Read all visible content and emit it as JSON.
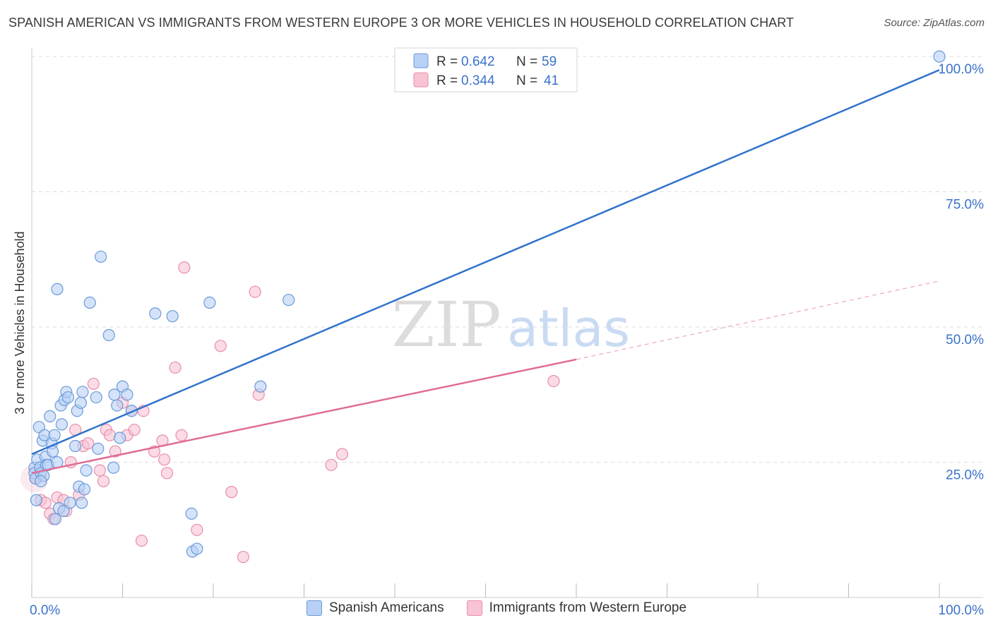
{
  "title": "SPANISH AMERICAN VS IMMIGRANTS FROM WESTERN EUROPE 3 OR MORE VEHICLES IN HOUSEHOLD CORRELATION CHART",
  "source": "Source: ZipAtlas.com",
  "watermark": {
    "zip": "ZIP",
    "atlas": "atlas"
  },
  "legend": {
    "r_label": "R =",
    "n_label": "N =",
    "series1": {
      "r": "0.642",
      "n": "59"
    },
    "series2": {
      "r": "0.344",
      "n": "41"
    }
  },
  "colors": {
    "blue_fill": "#b8d0f5",
    "blue_stroke": "#6b9ad8",
    "blue_line": "#2f72cc",
    "pink_fill": "#f8c3d3",
    "pink_stroke": "#e68fab",
    "pink_line": "#e06b94",
    "tick_blue": "#3a72c8"
  },
  "chart_data": {
    "type": "scatter",
    "title": "SPANISH AMERICAN VS IMMIGRANTS FROM WESTERN EUROPE 3 OR MORE VEHICLES IN HOUSEHOLD CORRELATION CHART",
    "xlabel": "",
    "ylabel": "3 or more Vehicles in Household",
    "xlim": [
      0,
      100
    ],
    "ylim": [
      0,
      100
    ],
    "x_tick_labels": [
      "0.0%",
      "100.0%"
    ],
    "y_ticks": [
      25,
      50,
      75,
      100
    ],
    "y_tick_labels": [
      "25.0%",
      "50.0%",
      "75.0%",
      "100.0%"
    ],
    "legend_position": "top-center",
    "series": [
      {
        "name": "Spanish Americans",
        "r": 0.642,
        "n": 59,
        "trend": {
          "x0": 0,
          "y0": 26.5,
          "x1": 100,
          "y1": 97.5
        },
        "points": [
          [
            0.3,
            24.0
          ],
          [
            0.3,
            23.0
          ],
          [
            0.4,
            22.0
          ],
          [
            0.5,
            18.0
          ],
          [
            0.6,
            25.5
          ],
          [
            0.8,
            31.5
          ],
          [
            0.9,
            24.0
          ],
          [
            1.0,
            23.0
          ],
          [
            1.2,
            29.0
          ],
          [
            1.3,
            22.5
          ],
          [
            1.4,
            30.0
          ],
          [
            1.5,
            26.0
          ],
          [
            1.6,
            24.5
          ],
          [
            1.8,
            24.5
          ],
          [
            2.0,
            33.5
          ],
          [
            2.2,
            28.5
          ],
          [
            2.3,
            27.0
          ],
          [
            2.5,
            30.0
          ],
          [
            2.6,
            14.5
          ],
          [
            2.8,
            25.0
          ],
          [
            3.0,
            16.5
          ],
          [
            3.2,
            35.5
          ],
          [
            3.3,
            32.0
          ],
          [
            3.5,
            16.0
          ],
          [
            3.6,
            36.5
          ],
          [
            3.8,
            38.0
          ],
          [
            4.0,
            37.0
          ],
          [
            4.2,
            17.5
          ],
          [
            4.8,
            28.0
          ],
          [
            5.0,
            34.5
          ],
          [
            5.2,
            20.5
          ],
          [
            5.4,
            36.0
          ],
          [
            5.5,
            17.5
          ],
          [
            5.6,
            38.0
          ],
          [
            5.8,
            20.0
          ],
          [
            6.0,
            23.5
          ],
          [
            6.4,
            54.5
          ],
          [
            7.1,
            37.0
          ],
          [
            7.3,
            27.5
          ],
          [
            7.6,
            63.0
          ],
          [
            8.5,
            48.5
          ],
          [
            9.0,
            24.0
          ],
          [
            9.1,
            37.5
          ],
          [
            9.4,
            35.5
          ],
          [
            9.7,
            29.5
          ],
          [
            10.0,
            39.0
          ],
          [
            10.5,
            37.5
          ],
          [
            11.0,
            34.5
          ],
          [
            13.6,
            52.5
          ],
          [
            15.5,
            52.0
          ],
          [
            17.6,
            15.5
          ],
          [
            17.7,
            8.5
          ],
          [
            18.2,
            9.0
          ],
          [
            19.6,
            54.5
          ],
          [
            25.2,
            39.0
          ],
          [
            28.3,
            55.0
          ],
          [
            100.0,
            100.0
          ],
          [
            2.8,
            57.0
          ],
          [
            1.0,
            21.5
          ]
        ]
      },
      {
        "name": "Immigrants from Western Europe",
        "r": 0.344,
        "n": 41,
        "trend": {
          "x0": 0,
          "y0": 23.0,
          "x1": 60,
          "y1": 44.0
        },
        "trend_dashed": {
          "x0": 60,
          "y0": 44.0,
          "x1": 100,
          "y1": 58.5
        },
        "points": [
          [
            0.5,
            22.0
          ],
          [
            1.0,
            18.0
          ],
          [
            1.5,
            17.5
          ],
          [
            2.0,
            15.5
          ],
          [
            2.4,
            14.5
          ],
          [
            2.8,
            18.5
          ],
          [
            3.5,
            18.0
          ],
          [
            3.8,
            16.0
          ],
          [
            4.3,
            25.0
          ],
          [
            4.8,
            31.0
          ],
          [
            5.2,
            19.0
          ],
          [
            5.7,
            28.0
          ],
          [
            6.2,
            28.5
          ],
          [
            6.8,
            39.5
          ],
          [
            7.5,
            23.5
          ],
          [
            7.9,
            21.5
          ],
          [
            8.2,
            31.0
          ],
          [
            8.6,
            30.0
          ],
          [
            9.2,
            27.0
          ],
          [
            10.0,
            36.0
          ],
          [
            10.5,
            30.0
          ],
          [
            11.0,
            34.5
          ],
          [
            11.3,
            31.0
          ],
          [
            12.3,
            34.5
          ],
          [
            12.1,
            10.5
          ],
          [
            13.5,
            27.0
          ],
          [
            14.4,
            29.0
          ],
          [
            14.6,
            25.5
          ],
          [
            14.9,
            23.0
          ],
          [
            15.8,
            42.5
          ],
          [
            16.5,
            30.0
          ],
          [
            16.8,
            61.0
          ],
          [
            18.2,
            12.5
          ],
          [
            20.8,
            46.5
          ],
          [
            22.0,
            19.5
          ],
          [
            23.3,
            7.5
          ],
          [
            24.6,
            56.5
          ],
          [
            25.0,
            37.5
          ],
          [
            33.0,
            24.5
          ],
          [
            34.2,
            26.5
          ],
          [
            57.5,
            40.0
          ]
        ]
      }
    ]
  }
}
